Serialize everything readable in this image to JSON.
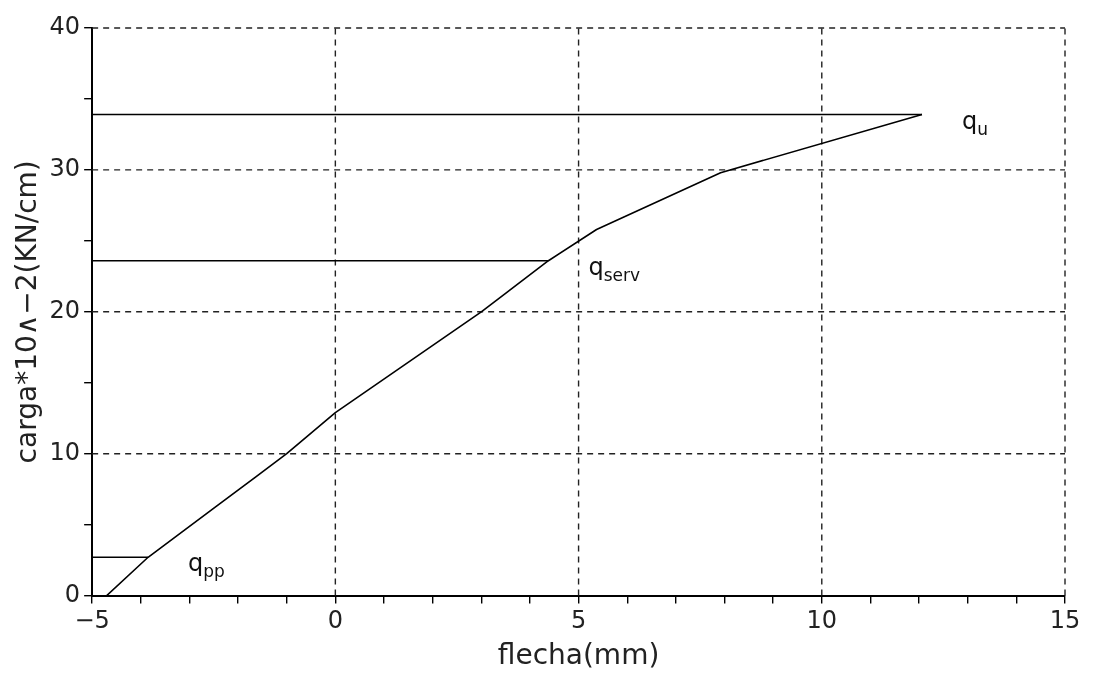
{
  "chart_data": {
    "type": "line",
    "xlabel": "flecha(mm)",
    "ylabel": "carga*10∧−2(KN/cm)",
    "xlim": [
      -5,
      15
    ],
    "ylim": [
      0,
      40
    ],
    "xticks": [
      {
        "value": -5,
        "label": "−5"
      },
      {
        "value": -4,
        "label": null
      },
      {
        "value": -3,
        "label": null
      },
      {
        "value": -2,
        "label": null
      },
      {
        "value": -1,
        "label": null
      },
      0,
      {
        "value": 1,
        "label": null
      },
      {
        "value": 2,
        "label": null
      },
      {
        "value": 3,
        "label": null
      },
      {
        "value": 4,
        "label": null
      },
      5,
      {
        "value": 6,
        "label": null
      },
      {
        "value": 7,
        "label": null
      },
      {
        "value": 8,
        "label": null
      },
      {
        "value": 9,
        "label": null
      },
      10,
      {
        "value": 11,
        "label": null
      },
      {
        "value": 12,
        "label": null
      },
      {
        "value": 13,
        "label": null
      },
      {
        "value": 14,
        "label": null
      },
      15
    ],
    "yticks": [
      0,
      {
        "value": 5,
        "label": null
      },
      10,
      {
        "value": 15,
        "label": null
      },
      20,
      {
        "value": 25,
        "label": null
      },
      30,
      {
        "value": 35,
        "label": null
      },
      40
    ],
    "grid": true,
    "legend": false,
    "marker": "none",
    "line_style": "solid",
    "series": [
      {
        "color": "#000000",
        "x": [
          -4.7,
          -3.85,
          -1,
          0,
          3,
          4.38,
          5.37,
          7.92,
          12.06
        ],
        "values": [
          0,
          2.7,
          10,
          12.9,
          20,
          23.6,
          25.8,
          29.8,
          33.9
        ]
      },
      {
        "color": "#000000",
        "x": [
          -5,
          12.06
        ],
        "values": [
          33.9,
          33.9
        ]
      },
      {
        "color": "#000000",
        "x": [
          -5,
          4.38
        ],
        "values": [
          23.6,
          23.6
        ]
      },
      {
        "color": "#000000",
        "x": [
          -5,
          -3.85
        ],
        "values": [
          2.7,
          2.7
        ]
      }
    ],
    "annotations": [
      {
        "text": "q$_{u}$",
        "x": 12.06,
        "y": 33.9
      },
      {
        "text": "q$_{serv}$",
        "x": 4.38,
        "y": 23.6
      },
      {
        "text": "q$_{pp}$",
        "x": -3.85,
        "y": 2.7
      }
    ]
  }
}
